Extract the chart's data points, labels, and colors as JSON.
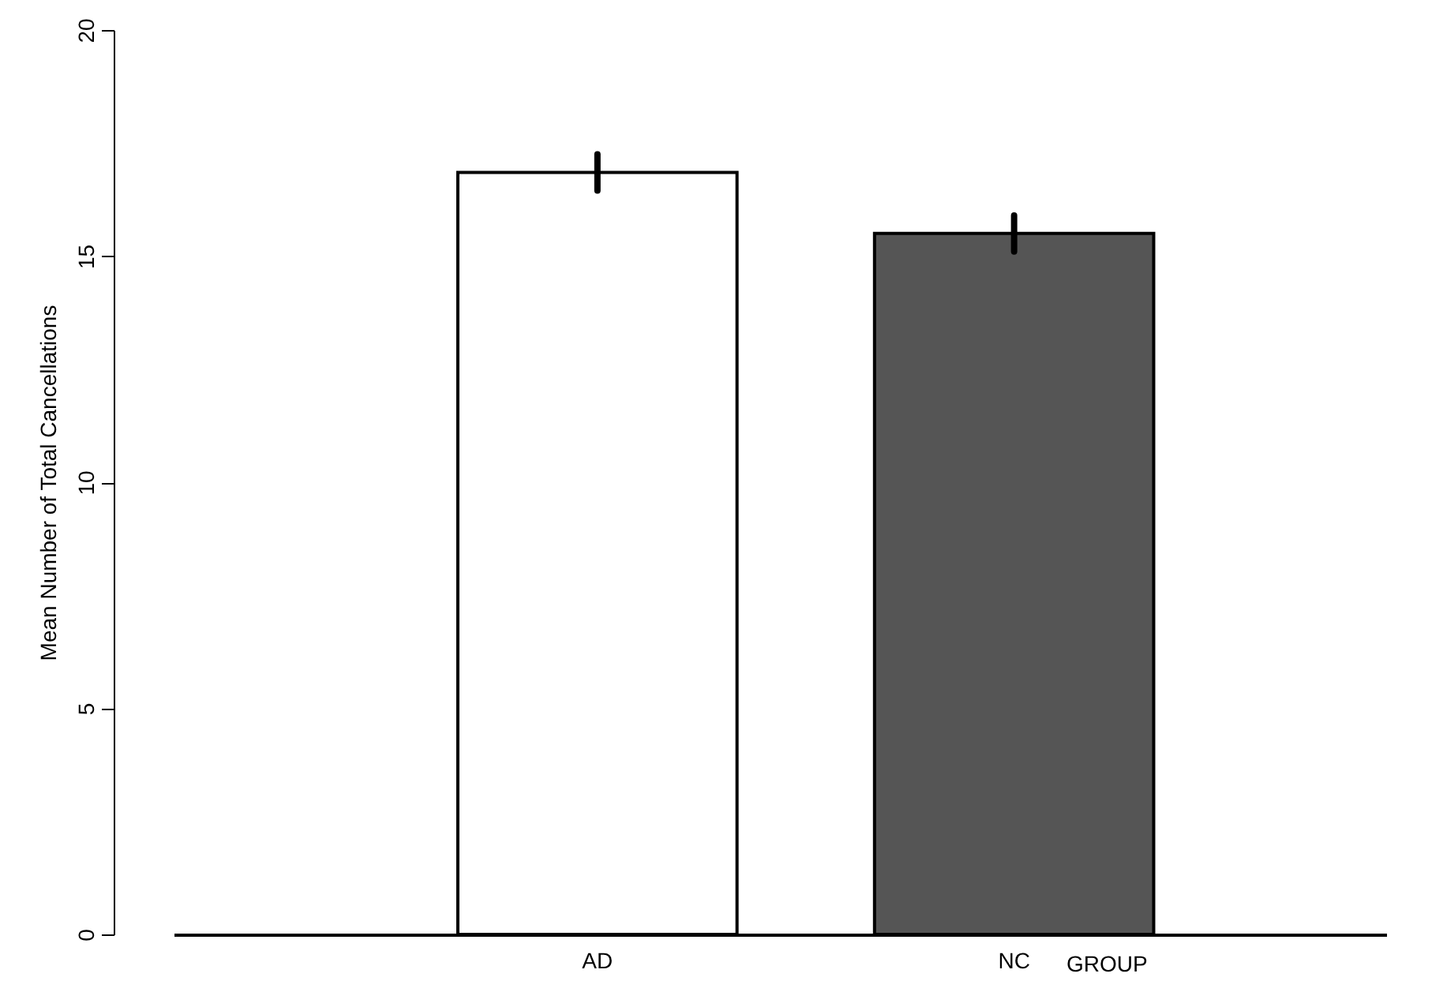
{
  "chart_data": {
    "type": "bar",
    "ylabel": "Mean Number of Total Cancellations",
    "xlabel": "GROUP",
    "categories": [
      "AD",
      "NC"
    ],
    "values": [
      16.85,
      15.5
    ],
    "errors": [
      0.4,
      0.4
    ],
    "colors": [
      "#ffffff",
      "#555555"
    ],
    "ylim": [
      0,
      20
    ],
    "yticks": [
      0,
      5,
      10,
      15,
      20
    ],
    "grid": false
  }
}
